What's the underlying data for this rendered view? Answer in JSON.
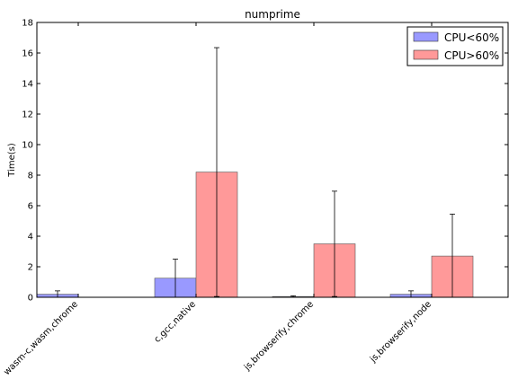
{
  "chart_data": {
    "type": "bar",
    "title": "numprime",
    "xlabel": "",
    "ylabel": "Time(s)",
    "ylim": [
      0,
      18
    ],
    "yticks": [
      0,
      2,
      4,
      6,
      8,
      10,
      12,
      14,
      16,
      18
    ],
    "categories": [
      "wasm-c,wasm,chrome",
      "c,gcc,native",
      "js,browserify,chrome",
      "js,browserify,node"
    ],
    "series": [
      {
        "name": "CPU<60%",
        "color": "#9999ff",
        "values": [
          0.2,
          1.25,
          0.05,
          0.2
        ],
        "errors": [
          0.22,
          1.25,
          0.05,
          0.22
        ]
      },
      {
        "name": "CPU>60%",
        "color": "#ff9999",
        "values": [
          0,
          8.2,
          3.5,
          2.7
        ],
        "errors": [
          0,
          8.15,
          3.45,
          2.75
        ]
      }
    ],
    "legend_position": "top-right",
    "grid": false
  }
}
